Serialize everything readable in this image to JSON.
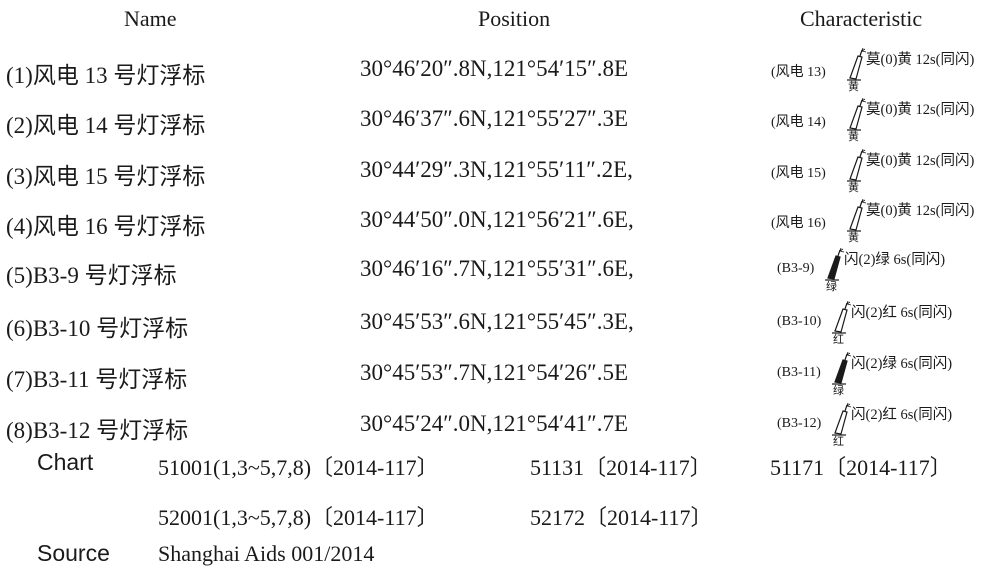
{
  "headers": {
    "name": "Name",
    "position": "Position",
    "characteristic": "Characteristic"
  },
  "rows": [
    {
      "name": "(1)风电 13 号灯浮标",
      "position": "30°46′20″.8N,121°54′15″.8E",
      "id": "(风电 13)",
      "light": "莫(0)黄 12s(同闪)",
      "color": "黄",
      "fill": "outline"
    },
    {
      "name": "(2)风电 14 号灯浮标",
      "position": "30°46′37″.6N,121°55′27″.3E",
      "id": "(风电 14)",
      "light": "莫(0)黄 12s(同闪)",
      "color": "黄",
      "fill": "outline"
    },
    {
      "name": "(3)风电 15 号灯浮标",
      "position": "30°44′29″.3N,121°55′11″.2E,",
      "id": "(风电 15)",
      "light": "莫(0)黄 12s(同闪)",
      "color": "黄",
      "fill": "outline"
    },
    {
      "name": "(4)风电 16 号灯浮标",
      "position": "30°44′50″.0N,121°56′21″.6E,",
      "id": "(风电 16)",
      "light": "莫(0)黄 12s(同闪)",
      "color": "黄",
      "fill": "outline"
    },
    {
      "name": "(5)B3-9 号灯浮标",
      "position": "30°46′16″.7N,121°55′31″.6E,",
      "id": "(B3-9)",
      "light": "闪(2)绿 6s(同闪)",
      "color": "绿",
      "fill": "solid"
    },
    {
      "name": "(6)B3-10 号灯浮标",
      "position": "30°45′53″.6N,121°55′45″.3E,",
      "id": "(B3-10)",
      "light": "闪(2)红 6s(同闪)",
      "color": "红",
      "fill": "outline"
    },
    {
      "name": "(7)B3-11 号灯浮标",
      "position": "30°45′53″.7N,121°54′26″.5E",
      "id": "(B3-11)",
      "light": "闪(2)绿 6s(同闪)",
      "color": "绿",
      "fill": "solid"
    },
    {
      "name": "(8)B3-12 号灯浮标",
      "position": "30°45′24″.0N,121°54′41″.7E",
      "id": "(B3-12)",
      "light": "闪(2)红 6s(同闪)",
      "color": "红",
      "fill": "outline"
    }
  ],
  "chart": {
    "label": "Chart",
    "line1_a": "51001(1,3~5,7,8)〔2014-117〕",
    "line1_b": "51131〔2014-117〕",
    "line1_c": "51171〔2014-117〕",
    "line2_a": "52001(1,3~5,7,8)〔2014-117〕",
    "line2_b": "52172〔2014-117〕"
  },
  "source": {
    "label": "Source",
    "text": "Shanghai Aids 001/2014"
  }
}
